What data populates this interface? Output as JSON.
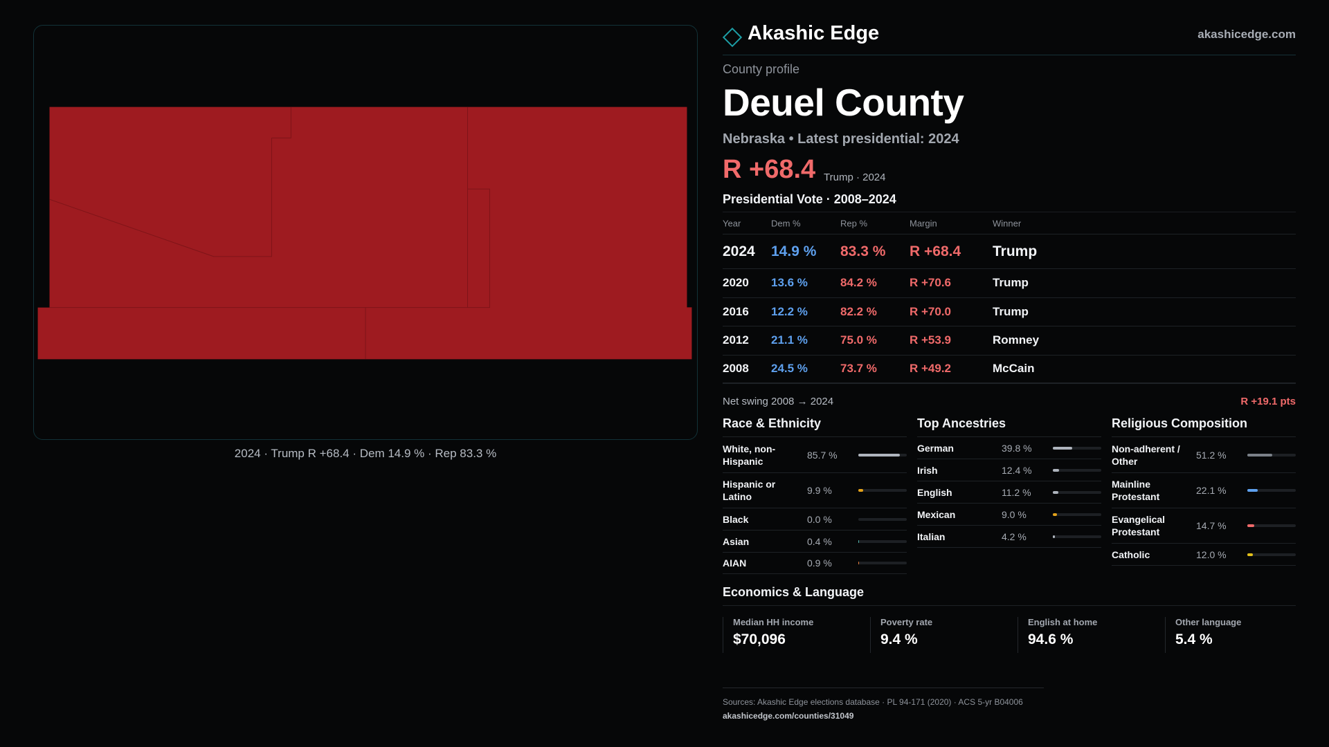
{
  "map": {
    "fill_color": "#9e1b20",
    "caption": "2024 · Trump R +68.4 · Dem 14.9 % · Rep 83.3 %"
  },
  "brand": {
    "icon": "diamond-icon",
    "name": "Akashic Edge",
    "url": "akashicedge.com"
  },
  "profile": {
    "kicker": "County profile",
    "title": "Deuel County",
    "subtitle": "Nebraska • Latest presidential: 2024",
    "headline_margin": "R +68.4",
    "headline_note": "Trump · 2024"
  },
  "vote": {
    "section_title": "Presidential Vote · 2008–2024",
    "headers": {
      "year": "Year",
      "dem": "Dem %",
      "rep": "Rep %",
      "margin": "Margin",
      "winner": "Winner"
    },
    "rows": [
      {
        "year": "2024",
        "dem": "14.9 %",
        "rep": "83.3 %",
        "margin": "R +68.4",
        "winner": "Trump"
      },
      {
        "year": "2020",
        "dem": "13.6 %",
        "rep": "84.2 %",
        "margin": "R +70.6",
        "winner": "Trump"
      },
      {
        "year": "2016",
        "dem": "12.2 %",
        "rep": "82.2 %",
        "margin": "R +70.0",
        "winner": "Trump"
      },
      {
        "year": "2012",
        "dem": "21.1 %",
        "rep": "75.0 %",
        "margin": "R +53.9",
        "winner": "Romney"
      },
      {
        "year": "2008",
        "dem": "24.5 %",
        "rep": "73.7 %",
        "margin": "R +49.2",
        "winner": "McCain"
      }
    ],
    "swing_label": "Net swing 2008 → 2024",
    "swing_value": "R +19.1 pts"
  },
  "race": {
    "title": "Race & Ethnicity",
    "items": [
      {
        "label": "White, non-Hispanic",
        "pct": "85.7 %",
        "value": 85.7,
        "color": "#aeb4bd"
      },
      {
        "label": "Hispanic or Latino",
        "pct": "9.9 %",
        "value": 9.9,
        "color": "#e3a21a"
      },
      {
        "label": "Black",
        "pct": "0.0 %",
        "value": 0.0,
        "color": "#7a8088"
      },
      {
        "label": "Asian",
        "pct": "0.4 %",
        "value": 0.4,
        "color": "#4fb3a9"
      },
      {
        "label": "AIAN",
        "pct": "0.9 %",
        "value": 0.9,
        "color": "#e07a3a"
      }
    ]
  },
  "ancestry": {
    "title": "Top Ancestries",
    "items": [
      {
        "label": "German",
        "pct": "39.8 %",
        "value": 39.8,
        "color": "#aeb4bd"
      },
      {
        "label": "Irish",
        "pct": "12.4 %",
        "value": 12.4,
        "color": "#aeb4bd"
      },
      {
        "label": "English",
        "pct": "11.2 %",
        "value": 11.2,
        "color": "#aeb4bd"
      },
      {
        "label": "Mexican",
        "pct": "9.0 %",
        "value": 9.0,
        "color": "#e3a21a"
      },
      {
        "label": "Italian",
        "pct": "4.2 %",
        "value": 4.2,
        "color": "#aeb4bd"
      }
    ]
  },
  "religion": {
    "title": "Religious Composition",
    "items": [
      {
        "label": "Non-adherent / Other",
        "pct": "51.2 %",
        "value": 51.2,
        "color": "#7a8088"
      },
      {
        "label": "Mainline Protestant",
        "pct": "22.1 %",
        "value": 22.1,
        "color": "#5ea0ee"
      },
      {
        "label": "Evangelical Protestant",
        "pct": "14.7 %",
        "value": 14.7,
        "color": "#f06a6a"
      },
      {
        "label": "Catholic",
        "pct": "12.0 %",
        "value": 12.0,
        "color": "#e3c01a"
      }
    ]
  },
  "economics": {
    "title": "Economics & Language",
    "items": [
      {
        "label": "Median HH income",
        "value": "$70,096"
      },
      {
        "label": "Poverty rate",
        "value": "9.4 %"
      },
      {
        "label": "English at home",
        "value": "94.6 %"
      },
      {
        "label": "Other language",
        "value": "5.4 %"
      }
    ]
  },
  "sources": {
    "text": "Sources: Akashic Edge elections database · PL 94-171 (2020) · ACS 5-yr B04006",
    "url": "akashicedge.com/counties/31049"
  }
}
